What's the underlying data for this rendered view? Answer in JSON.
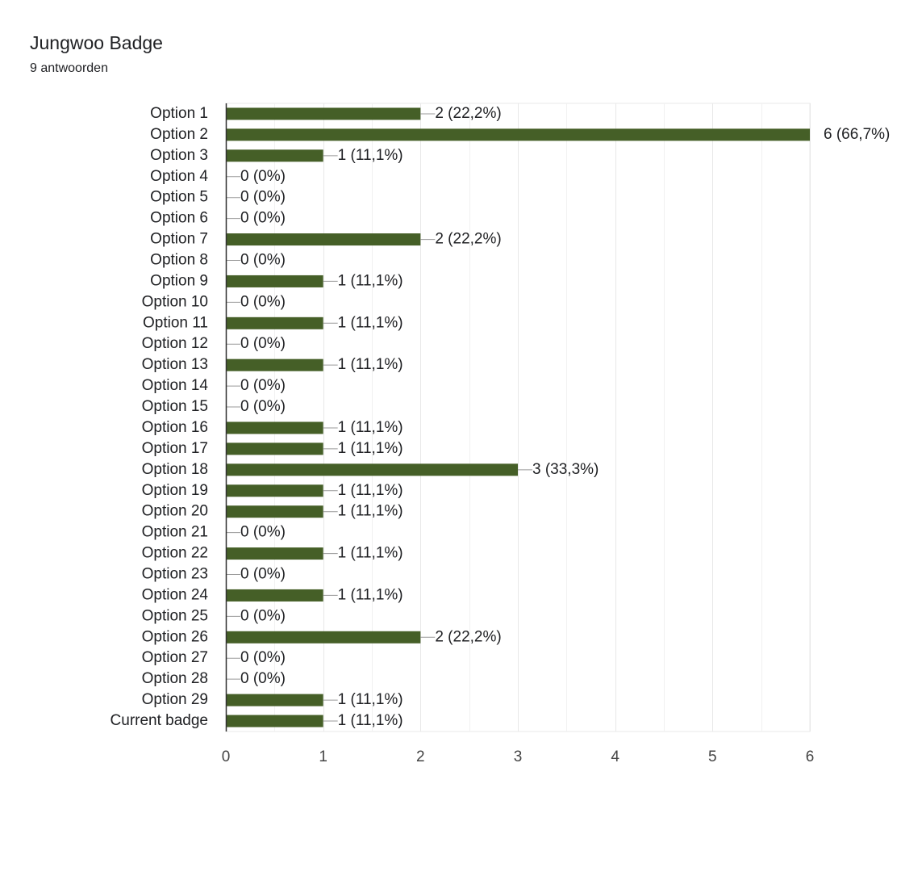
{
  "header": {
    "title": "Jungwoo Badge",
    "response_count": "9 antwoorden"
  },
  "colors": {
    "bar": "#455f27",
    "grid": "#e8e8e8",
    "axis": "#333333",
    "connector": "#999999",
    "text": "#202124"
  },
  "chart_data": {
    "type": "bar",
    "orientation": "horizontal",
    "categories": [
      "Option 1",
      "Option 2",
      "Option 3",
      "Option 4",
      "Option 5",
      "Option 6",
      "Option 7",
      "Option 8",
      "Option 9",
      "Option 10",
      "Option 11",
      "Option 12",
      "Option 13",
      "Option 14",
      "Option 15",
      "Option 16",
      "Option 17",
      "Option 18",
      "Option 19",
      "Option 20",
      "Option 21",
      "Option 22",
      "Option 23",
      "Option 24",
      "Option 25",
      "Option 26",
      "Option 27",
      "Option 28",
      "Option 29",
      "Current badge"
    ],
    "values": [
      2,
      6,
      1,
      0,
      0,
      0,
      2,
      0,
      1,
      0,
      1,
      0,
      1,
      0,
      0,
      1,
      1,
      3,
      1,
      1,
      0,
      1,
      0,
      1,
      0,
      2,
      0,
      0,
      1,
      1
    ],
    "data_labels": [
      "2 (22,2%)",
      "6 (66,7%)",
      "1 (11,1%)",
      "0 (0%)",
      "0 (0%)",
      "0 (0%)",
      "2 (22,2%)",
      "0 (0%)",
      "1 (11,1%)",
      "0 (0%)",
      "1 (11,1%)",
      "0 (0%)",
      "1 (11,1%)",
      "0 (0%)",
      "0 (0%)",
      "1 (11,1%)",
      "1 (11,1%)",
      "3 (33,3%)",
      "1 (11,1%)",
      "1 (11,1%)",
      "0 (0%)",
      "1 (11,1%)",
      "0 (0%)",
      "1 (11,1%)",
      "0 (0%)",
      "2 (22,2%)",
      "0 (0%)",
      "0 (0%)",
      "1 (11,1%)",
      "1 (11,1%)"
    ],
    "x_ticks": [
      "0",
      "1",
      "2",
      "3",
      "4",
      "5",
      "6"
    ],
    "xlim": [
      0,
      6
    ],
    "grid": true,
    "minor_grid": true
  }
}
